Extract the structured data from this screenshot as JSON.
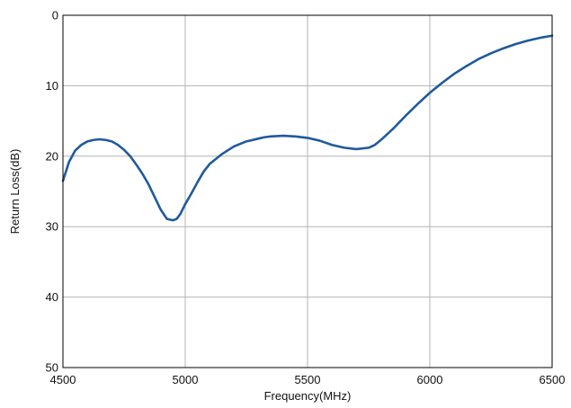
{
  "chart_data": {
    "type": "line",
    "title": "",
    "xlabel": "Frequency(MHz)",
    "ylabel": "Return Loss(dB)",
    "xlim": [
      4500,
      6500
    ],
    "ylim": [
      0,
      50
    ],
    "y_inverted": true,
    "grid": true,
    "x_ticks": [
      4500,
      5000,
      5500,
      6000,
      6500
    ],
    "y_ticks": [
      0,
      10,
      20,
      30,
      40,
      50
    ],
    "x_tick_labels": [
      "4500",
      "5000",
      "5500",
      "6000",
      "6500"
    ],
    "y_tick_labels": [
      "0",
      "10",
      "20",
      "30",
      "40",
      "50"
    ],
    "colors": {
      "line": "#1f5a9e",
      "grid": "#b3b3b3",
      "axis": "#000000"
    },
    "series": [
      {
        "name": "",
        "x": [
          4500,
          4525,
          4550,
          4575,
          4600,
          4625,
          4650,
          4675,
          4700,
          4725,
          4750,
          4775,
          4800,
          4825,
          4850,
          4875,
          4900,
          4925,
          4950,
          4965,
          4980,
          5000,
          5025,
          5050,
          5075,
          5100,
          5150,
          5200,
          5250,
          5300,
          5325,
          5350,
          5400,
          5450,
          5500,
          5550,
          5600,
          5650,
          5700,
          5750,
          5775,
          5800,
          5850,
          5900,
          5950,
          6000,
          6050,
          6100,
          6150,
          6200,
          6250,
          6300,
          6350,
          6400,
          6450,
          6500
        ],
        "y": [
          23.5,
          20.8,
          19.2,
          18.4,
          17.9,
          17.7,
          17.6,
          17.7,
          17.9,
          18.4,
          19.1,
          20.0,
          21.2,
          22.5,
          24.0,
          25.8,
          27.6,
          28.9,
          29.1,
          28.9,
          28.2,
          26.8,
          25.3,
          23.7,
          22.2,
          21.1,
          19.7,
          18.6,
          17.9,
          17.5,
          17.3,
          17.2,
          17.1,
          17.2,
          17.4,
          17.8,
          18.4,
          18.8,
          19.0,
          18.8,
          18.4,
          17.7,
          16.1,
          14.3,
          12.6,
          11.0,
          9.6,
          8.3,
          7.2,
          6.2,
          5.4,
          4.7,
          4.1,
          3.6,
          3.2,
          2.9
        ]
      }
    ]
  }
}
